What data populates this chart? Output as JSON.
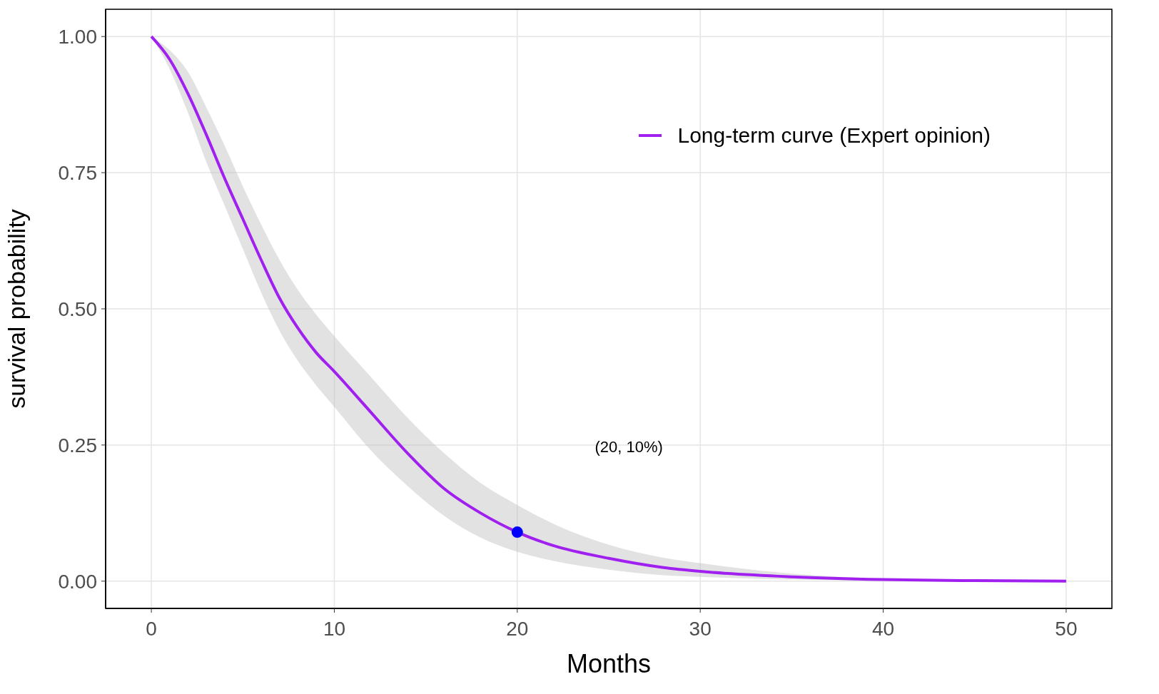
{
  "chart_data": {
    "type": "line",
    "xlabel": "Months",
    "ylabel": "survival probability",
    "xlim": [
      -2.5,
      52.5
    ],
    "xticks": [
      0,
      10,
      20,
      30,
      40,
      50
    ],
    "ylim": [
      -0.05,
      1.05
    ],
    "yticks": [
      {
        "value": 0,
        "label": "0.00"
      },
      {
        "value": 0.25,
        "label": "0.25"
      },
      {
        "value": 0.5,
        "label": "0.50"
      },
      {
        "value": 0.75,
        "label": "0.75"
      },
      {
        "value": 1,
        "label": "1.00"
      }
    ],
    "grid": true,
    "legend": "top right",
    "series": [
      {
        "name": "Long-term curve (Expert opinion)",
        "color": "#a020f0",
        "x": [
          0,
          1,
          2,
          3,
          4,
          5,
          6,
          7,
          8,
          9,
          10,
          12,
          14,
          16,
          18,
          20,
          22,
          25,
          28,
          30,
          35,
          40,
          45,
          50
        ],
        "values": [
          1,
          0.958,
          0.895,
          0.82,
          0.74,
          0.665,
          0.59,
          0.52,
          0.465,
          0.42,
          0.385,
          0.31,
          0.235,
          0.17,
          0.125,
          0.09,
          0.065,
          0.042,
          0.025,
          0.018,
          0.008,
          0.003,
          0.001,
          0
        ],
        "lower": [
          1,
          0.94,
          0.86,
          0.77,
          0.69,
          0.61,
          0.53,
          0.46,
          0.405,
          0.36,
          0.32,
          0.24,
          0.175,
          0.12,
          0.08,
          0.054,
          0.037,
          0.021,
          0.011,
          0.008,
          0.003,
          0.001,
          0,
          0
        ],
        "upper": [
          1,
          0.975,
          0.935,
          0.87,
          0.8,
          0.725,
          0.655,
          0.59,
          0.535,
          0.49,
          0.45,
          0.375,
          0.3,
          0.235,
          0.18,
          0.14,
          0.105,
          0.067,
          0.043,
          0.033,
          0.014,
          0.005,
          0.002,
          0
        ]
      },
      {
        "type": "scatter",
        "color": "#0000ff",
        "x": [
          20
        ],
        "values": [
          0.09
        ]
      }
    ],
    "annotations": [
      "(20, 10%)"
    ]
  }
}
